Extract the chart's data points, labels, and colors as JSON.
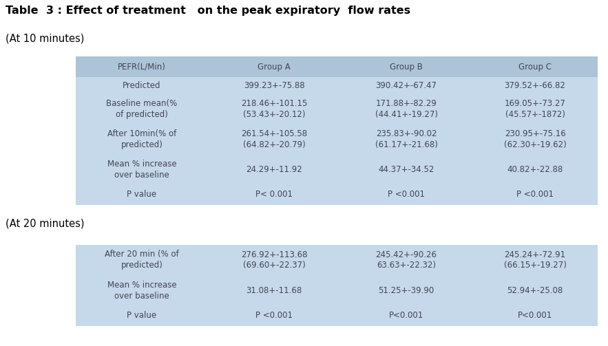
{
  "title": "Table  3 : Effect of treatment   on the peak expiratory  flow rates",
  "subtitle1": "(At 10 minutes)",
  "subtitle2": "(At 20 minutes)",
  "bg_color": "#ffffff",
  "table_bg": "#c5d9ea",
  "header_bg": "#adc4d8",
  "text_color": "#444455",
  "table1_header": [
    "PEFR(L/Min)",
    "Group A",
    "Group B",
    "Group C"
  ],
  "table1_rows": [
    [
      "Predicted",
      "399.23+-75.88",
      "390.42+-67.47",
      "379.52+-66.82"
    ],
    [
      "Baseline mean(%\nof predicted)",
      "218.46+-101.15\n(53.43+-20.12)",
      "171.88+-82.29\n(44.41+-19.27)",
      "169.05+-73.27\n(45.57+-1872)"
    ],
    [
      "After 10min(% of\npredicted)",
      "261.54+-105.58\n(64.82+-20.79)",
      "235.83+-90.02\n(61.17+-21.68)",
      "230.95+-75.16\n(62.30+-19.62)"
    ],
    [
      "Mean % increase\nover baseline",
      "24.29+-11.92",
      "44.37+-34.52",
      "40.82+-22.88"
    ],
    [
      "P value",
      "P< 0.001",
      "P <0.001",
      "P <0.001"
    ]
  ],
  "table2_rows": [
    [
      "After 20 min (% of\npredicted)",
      "276.92+-113.68\n(69.60+-22.37)",
      "245.42+-90.26\n63.63+-22.32)",
      "245.24+-72.91\n(66.15+-19.27)"
    ],
    [
      "Mean % increase\nover baseline",
      "31.08+-11.68",
      "51.25+-39.90",
      "52.94+-25.08"
    ],
    [
      "P value",
      "P <0.001",
      "P<0.001",
      "P<0.001"
    ]
  ],
  "fig_width": 8.83,
  "fig_height": 5.03,
  "dpi": 100,
  "font_size": 8.5,
  "title_font_size": 11.5,
  "subtitle_font_size": 10.5
}
